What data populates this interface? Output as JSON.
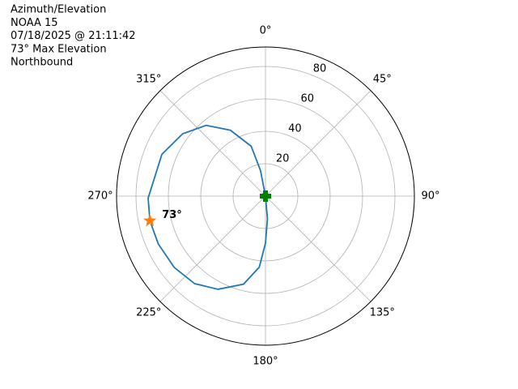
{
  "chart_data": {
    "type": "polar",
    "title_lines": [
      "Azimuth/Elevation",
      "NOAA 15",
      "07/18/2025 @ 21:11:42",
      "73° Max Elevation",
      "Northbound"
    ],
    "theta_zero": "N",
    "theta_direction": "clockwise",
    "series": [
      {
        "color": "#1f77b4",
        "theta": [
          0,
          349,
          344,
          332,
          320,
          307,
          292,
          269,
          258,
          246,
          232,
          219,
          207,
          194,
          185,
          180,
          175,
          180
        ],
        "r": [
          0,
          16,
          32,
          46,
          57,
          64,
          69,
          72.5,
          73,
          72.5,
          71.5,
          69.5,
          64.5,
          56,
          44,
          29,
          14,
          0
        ]
      }
    ],
    "max_point": {
      "theta": 258,
      "r": 73,
      "color": "#ff7f0e",
      "label": "73°"
    },
    "start_point": {
      "theta": 0,
      "r": 0,
      "color": "#008000"
    },
    "rlim": [
      0,
      92
    ],
    "rticks": [
      20,
      40,
      60,
      80
    ],
    "thetaticks": [
      {
        "value": 0,
        "label": "0°"
      },
      {
        "value": 45,
        "label": "45°"
      },
      {
        "value": 90,
        "label": "90°"
      },
      {
        "value": 135,
        "label": "135°"
      },
      {
        "value": 180,
        "label": "180°"
      },
      {
        "value": 225,
        "label": "225°"
      },
      {
        "value": 270,
        "label": "270°"
      },
      {
        "value": 315,
        "label": "315°"
      }
    ],
    "grid": true
  }
}
